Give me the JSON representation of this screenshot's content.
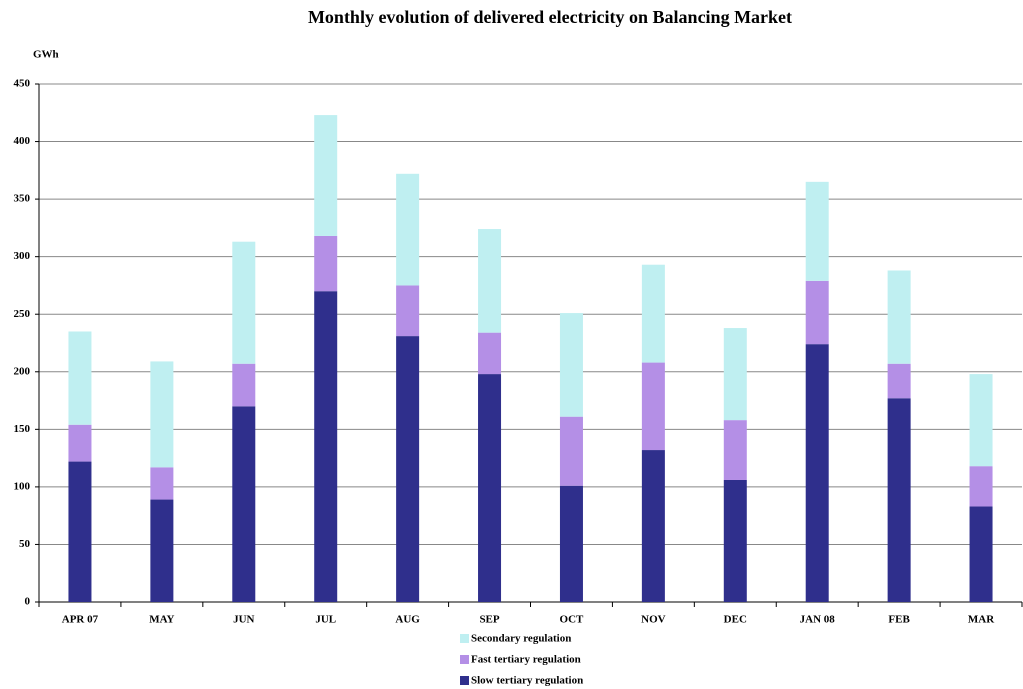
{
  "chart_data": {
    "type": "stacked_bar",
    "title": "Monthly evolution of delivered electricity on Balancing Market",
    "y_label": "GWh",
    "categories": [
      "APR 07",
      "MAY",
      "JUN",
      "JUL",
      "AUG",
      "SEP",
      "OCT",
      "NOV",
      "DEC",
      "JAN 08",
      "FEB",
      "MAR"
    ],
    "series": [
      {
        "name": "Slow tertiary regulation",
        "color": "#2f2f8c",
        "values": [
          122,
          89,
          170,
          270,
          231,
          198,
          101,
          132,
          106,
          224,
          177,
          83
        ]
      },
      {
        "name": "Fast tertiary regulation",
        "color": "#b48fe6",
        "values": [
          32,
          28,
          37,
          48,
          44,
          36,
          60,
          76,
          52,
          55,
          30,
          35
        ]
      },
      {
        "name": "Secondary regulation",
        "color": "#bfeff1",
        "values": [
          81,
          92,
          106,
          105,
          97,
          90,
          90,
          85,
          80,
          86,
          81,
          80
        ]
      }
    ],
    "ylim": [
      0,
      450
    ],
    "yticks": [
      0,
      50,
      100,
      150,
      200,
      250,
      300,
      350,
      400,
      450
    ],
    "grid": true
  }
}
